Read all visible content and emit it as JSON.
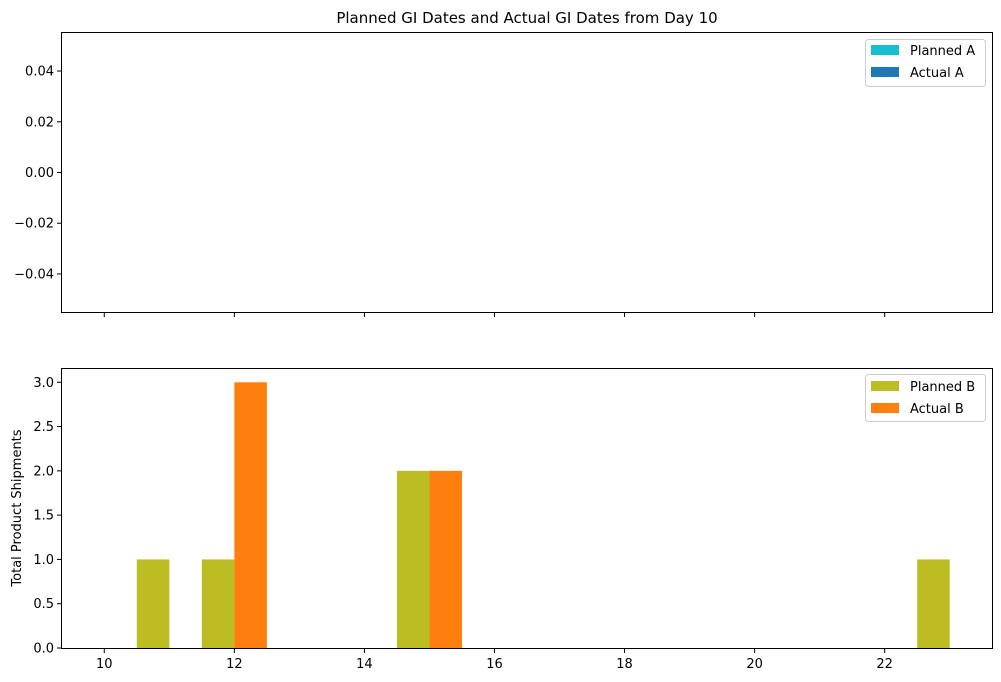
{
  "chart_data": [
    {
      "type": "bar",
      "title": "Planned GI Dates and Actual GI Dates from Day 10",
      "xlabel": "",
      "ylabel": "",
      "xlim": [
        9.35,
        23.65
      ],
      "ylim": [
        -0.055,
        0.055
      ],
      "yticks": [
        0.04,
        0.02,
        0.0,
        -0.02,
        -0.04
      ],
      "ytick_labels": [
        "0.04",
        "0.02",
        "0.00",
        "−0.02",
        "−0.04"
      ],
      "xticks_shown": false,
      "grid": false,
      "legend_position": "top-right",
      "series": [
        {
          "name": "Planned A",
          "color": "#17becf",
          "points": []
        },
        {
          "name": "Actual A",
          "color": "#1f77b4",
          "points": []
        }
      ]
    },
    {
      "type": "bar",
      "title": "",
      "xlabel": "",
      "ylabel": "Total Product Shipments",
      "xlim": [
        9.35,
        23.65
      ],
      "ylim": [
        0,
        3.15
      ],
      "xticks": [
        10,
        12,
        14,
        16,
        18,
        20,
        22
      ],
      "xtick_labels": [
        "10",
        "12",
        "14",
        "16",
        "18",
        "20",
        "22"
      ],
      "yticks": [
        0.0,
        0.5,
        1.0,
        1.5,
        2.0,
        2.5,
        3.0
      ],
      "ytick_labels": [
        "0.0",
        "0.5",
        "1.0",
        "1.5",
        "2.0",
        "2.5",
        "3.0"
      ],
      "bar_width": 0.5,
      "grid": false,
      "legend_position": "top-right",
      "series": [
        {
          "name": "Planned B",
          "color": "#bcbd22",
          "points": [
            {
              "x": 11,
              "y": 1
            },
            {
              "x": 12,
              "y": 1
            },
            {
              "x": 15,
              "y": 2
            },
            {
              "x": 23,
              "y": 1
            }
          ]
        },
        {
          "name": "Actual B",
          "color": "#ff7f0e",
          "points": [
            {
              "x": 12,
              "y": 3
            },
            {
              "x": 15,
              "y": 2
            }
          ]
        }
      ]
    }
  ]
}
